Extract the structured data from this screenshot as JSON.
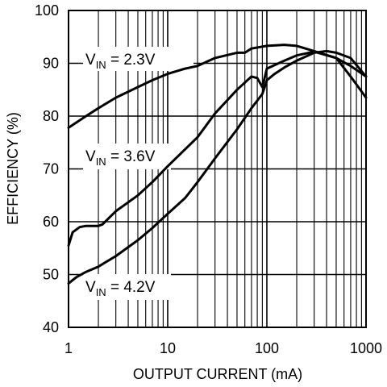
{
  "chart_data": {
    "type": "line",
    "title": "",
    "xlabel": "OUTPUT CURRENT (mA)",
    "ylabel": "EFFICIENCY (%)",
    "x_scale": "log",
    "xlim": [
      1,
      1000
    ],
    "ylim": [
      40,
      100
    ],
    "grid": true,
    "x_ticks": [
      1,
      10,
      100,
      1000
    ],
    "x_tick_labels": [
      "1",
      "10",
      "100",
      "1000"
    ],
    "y_ticks": [
      40,
      50,
      60,
      70,
      80,
      90,
      100
    ],
    "y_tick_labels": [
      "40",
      "50",
      "60",
      "70",
      "80",
      "90",
      "100"
    ],
    "annotations": [
      {
        "prefix": "V",
        "sub": "IN",
        "text": " = 2.3V"
      },
      {
        "prefix": "V",
        "sub": "IN",
        "text": " = 3.6V"
      },
      {
        "prefix": "V",
        "sub": "IN",
        "text": " = 4.2V"
      }
    ],
    "series": [
      {
        "x": [
          1,
          1.5,
          2,
          3,
          5,
          7,
          10,
          15,
          20,
          30,
          50,
          60,
          70,
          100,
          150,
          200,
          300,
          500,
          700,
          1000
        ],
        "y": [
          77.8,
          80,
          81.5,
          83.5,
          85.5,
          86.8,
          88,
          89,
          89.5,
          91,
          92,
          92,
          92.8,
          93.3,
          93.5,
          93.3,
          92.3,
          91,
          89.5,
          87.5
        ]
      },
      {
        "x": [
          1,
          1.1,
          1.3,
          1.5,
          2,
          2.2,
          3,
          5,
          7,
          10,
          20,
          30,
          50,
          70,
          80,
          90,
          100,
          150,
          200,
          300,
          500,
          700,
          1000
        ],
        "y": [
          55.5,
          58,
          59,
          59.2,
          59.2,
          59.5,
          62,
          65,
          67.5,
          70.5,
          76,
          80.5,
          85,
          87.5,
          87.2,
          85.5,
          89,
          90.5,
          91.5,
          92.2,
          91,
          87.5,
          83.5
        ]
      },
      {
        "x": [
          1,
          1.2,
          1.5,
          2,
          3,
          5,
          7,
          10,
          15,
          20,
          30,
          50,
          70,
          90,
          95,
          100,
          120,
          150,
          200,
          300,
          400,
          500,
          700,
          1000
        ],
        "y": [
          48.3,
          49.5,
          50.5,
          51.5,
          53.5,
          56.5,
          58.8,
          61.5,
          64.5,
          67.5,
          72,
          77.5,
          81.5,
          84.2,
          85.5,
          86.8,
          88,
          89.2,
          90.5,
          92,
          92.3,
          92,
          91,
          87.5
        ]
      }
    ]
  }
}
